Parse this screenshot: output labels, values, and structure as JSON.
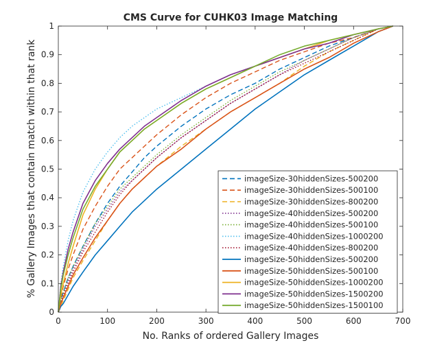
{
  "chart_data": {
    "type": "line",
    "title": "CMS Curve for CUHK03 Image Matching",
    "xlabel": "No. Ranks of ordered Gallery Images",
    "ylabel": "% Gallery Images that contain match within that rank",
    "xlim": [
      0,
      700
    ],
    "ylim": [
      0,
      1
    ],
    "xticks": [
      0,
      100,
      200,
      300,
      400,
      500,
      600,
      700
    ],
    "yticks": [
      0,
      0.1,
      0.2,
      0.3,
      0.4,
      0.5,
      0.6,
      0.7,
      0.8,
      0.9,
      1
    ],
    "x": [
      0,
      5,
      10,
      20,
      30,
      50,
      75,
      100,
      125,
      150,
      175,
      200,
      250,
      300,
      350,
      400,
      450,
      500,
      550,
      600,
      650,
      680
    ],
    "grid": false,
    "legend_position": "bottom-right",
    "series": [
      {
        "name": "imageSize-30hiddenSizes-500200",
        "color": "#0072BD",
        "style": "dashed",
        "values": [
          0,
          0.04,
          0.07,
          0.12,
          0.16,
          0.23,
          0.31,
          0.38,
          0.44,
          0.49,
          0.54,
          0.58,
          0.65,
          0.71,
          0.76,
          0.8,
          0.85,
          0.89,
          0.93,
          0.96,
          0.99,
          1
        ]
      },
      {
        "name": "imageSize-30hiddenSizes-500100",
        "color": "#D95319",
        "style": "dashed",
        "values": [
          0,
          0.05,
          0.09,
          0.15,
          0.2,
          0.29,
          0.37,
          0.44,
          0.5,
          0.54,
          0.58,
          0.62,
          0.69,
          0.75,
          0.8,
          0.84,
          0.88,
          0.91,
          0.94,
          0.96,
          0.99,
          1
        ]
      },
      {
        "name": "imageSize-30hiddenSizes-800200",
        "color": "#EDB120",
        "style": "dashed",
        "values": [
          0,
          0.02,
          0.04,
          0.08,
          0.12,
          0.18,
          0.25,
          0.32,
          0.38,
          0.43,
          0.47,
          0.51,
          0.58,
          0.64,
          0.7,
          0.75,
          0.8,
          0.86,
          0.91,
          0.95,
          0.99,
          1
        ]
      },
      {
        "name": "imageSize-40hiddenSizes-500200",
        "color": "#7E2F8E",
        "style": "dotted",
        "values": [
          0,
          0.04,
          0.06,
          0.11,
          0.15,
          0.22,
          0.3,
          0.36,
          0.42,
          0.46,
          0.5,
          0.54,
          0.61,
          0.67,
          0.73,
          0.78,
          0.83,
          0.88,
          0.92,
          0.96,
          0.99,
          1
        ]
      },
      {
        "name": "imageSize-40hiddenSizes-500100",
        "color": "#77AC30",
        "style": "dotted",
        "values": [
          0,
          0.04,
          0.07,
          0.12,
          0.16,
          0.23,
          0.31,
          0.37,
          0.43,
          0.47,
          0.51,
          0.55,
          0.62,
          0.68,
          0.74,
          0.79,
          0.84,
          0.88,
          0.92,
          0.96,
          0.99,
          1
        ]
      },
      {
        "name": "imageSize-40hiddenSizes-1000200",
        "color": "#4DBEEE",
        "style": "dotted",
        "values": [
          0,
          0.1,
          0.16,
          0.25,
          0.32,
          0.42,
          0.5,
          0.56,
          0.61,
          0.65,
          0.68,
          0.71,
          0.75,
          0.79,
          0.83,
          0.86,
          0.89,
          0.92,
          0.95,
          0.97,
          0.99,
          1
        ]
      },
      {
        "name": "imageSize-40hiddenSizes-800200",
        "color": "#A2142F",
        "style": "dotted",
        "values": [
          0,
          0.03,
          0.06,
          0.1,
          0.14,
          0.21,
          0.28,
          0.35,
          0.41,
          0.46,
          0.5,
          0.54,
          0.61,
          0.67,
          0.73,
          0.78,
          0.83,
          0.87,
          0.91,
          0.95,
          0.99,
          1
        ]
      },
      {
        "name": "imageSize-50hiddenSizes-500200",
        "color": "#0072BD",
        "style": "solid",
        "values": [
          0,
          0.02,
          0.03,
          0.06,
          0.09,
          0.14,
          0.2,
          0.25,
          0.3,
          0.35,
          0.39,
          0.43,
          0.5,
          0.57,
          0.64,
          0.71,
          0.77,
          0.83,
          0.88,
          0.93,
          0.98,
          1
        ]
      },
      {
        "name": "imageSize-50hiddenSizes-500100",
        "color": "#D95319",
        "style": "solid",
        "values": [
          0,
          0.03,
          0.05,
          0.09,
          0.13,
          0.19,
          0.26,
          0.32,
          0.38,
          0.43,
          0.47,
          0.51,
          0.57,
          0.64,
          0.7,
          0.75,
          0.8,
          0.85,
          0.89,
          0.94,
          0.98,
          1
        ]
      },
      {
        "name": "imageSize-50hiddenSizes-1000200",
        "color": "#EDB120",
        "style": "solid",
        "values": [
          0,
          0.06,
          0.1,
          0.17,
          0.23,
          0.34,
          0.43,
          0.5,
          0.56,
          0.6,
          0.64,
          0.67,
          0.73,
          0.78,
          0.82,
          0.86,
          0.89,
          0.92,
          0.95,
          0.97,
          0.99,
          1
        ]
      },
      {
        "name": "imageSize-50hiddenSizes-1500200",
        "color": "#7E2F8E",
        "style": "solid",
        "values": [
          0,
          0.09,
          0.14,
          0.22,
          0.28,
          0.38,
          0.46,
          0.52,
          0.57,
          0.61,
          0.65,
          0.68,
          0.74,
          0.79,
          0.83,
          0.86,
          0.89,
          0.92,
          0.94,
          0.97,
          0.99,
          1
        ]
      },
      {
        "name": "imageSize-50hiddenSizes-1500100",
        "color": "#77AC30",
        "style": "solid",
        "values": [
          0,
          0.08,
          0.13,
          0.2,
          0.26,
          0.36,
          0.44,
          0.5,
          0.56,
          0.6,
          0.64,
          0.67,
          0.73,
          0.78,
          0.82,
          0.86,
          0.9,
          0.93,
          0.95,
          0.97,
          0.99,
          1
        ]
      }
    ]
  }
}
